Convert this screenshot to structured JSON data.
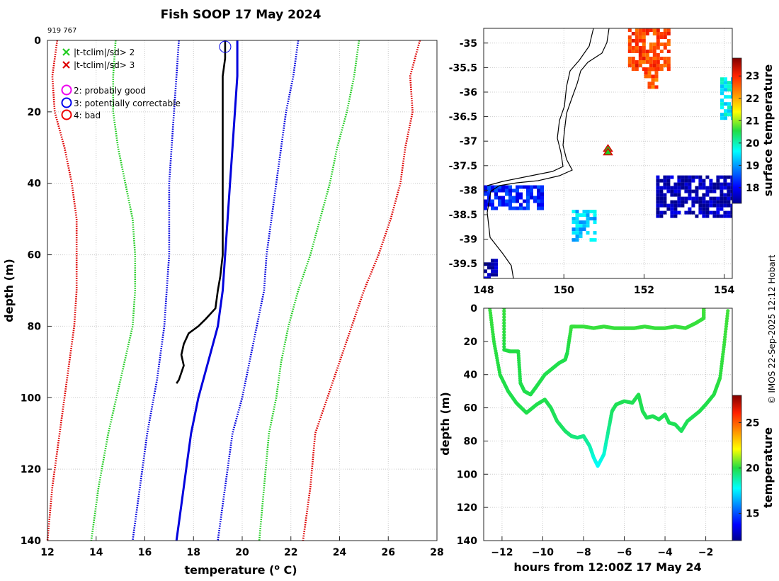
{
  "figure": {
    "title": "Fish SOOP 17 May 2024",
    "id_label": "919 767",
    "credit": "© IMOS 22-Sep-2025 12:12 Hobart",
    "colors": {
      "observed": "#000000",
      "climatology": "#0000dd",
      "sd2": "#22cc22",
      "sd3": "#dd0000",
      "flag2": "#ee00ee",
      "flag3": "#0000ee",
      "flag4": "#ee0000"
    }
  },
  "chart_data": [
    {
      "id": "profile",
      "type": "line",
      "xlabel": "temperature (o C)",
      "xlabel_main": "temperature (",
      "xlabel_sup": "o",
      "xlabel_tail": " C)",
      "ylabel": "depth (m)",
      "xlim": [
        12,
        28
      ],
      "ylim": [
        0,
        140
      ],
      "y_reversed": true,
      "xticks": [
        12,
        14,
        16,
        18,
        20,
        22,
        24,
        26,
        28
      ],
      "yticks": [
        0,
        20,
        40,
        60,
        80,
        100,
        120,
        140
      ],
      "legend": [
        {
          "marker": "x",
          "color": "#22cc22",
          "label": "|t-tclim|/sd> 2"
        },
        {
          "marker": "x",
          "color": "#dd0000",
          "label": "|t-tclim|/sd> 3"
        },
        {
          "marker": "o",
          "color": "#ee00ee",
          "label": "2: probably good"
        },
        {
          "marker": "o",
          "color": "#0000ee",
          "label": "3: potentially correctable"
        },
        {
          "marker": "o",
          "color": "#ee0000",
          "label": "4: bad"
        }
      ],
      "flag_marker": {
        "label": "3: potentially correctable",
        "temperature": 19.3,
        "depth": 1
      },
      "series": [
        {
          "name": "climatology - 3sd",
          "style": "dotted",
          "color": "#dd0000",
          "t": [
            12.4,
            12.2,
            12.3,
            12.7,
            13.0,
            13.2,
            13.2,
            13.2,
            13.1,
            12.8,
            12.5,
            12.2,
            12.0
          ],
          "d": [
            0,
            10,
            20,
            30,
            40,
            50,
            60,
            70,
            80,
            95,
            110,
            125,
            140
          ]
        },
        {
          "name": "climatology - 2sd",
          "style": "dotted",
          "color": "#22cc22",
          "t": [
            14.8,
            14.7,
            14.7,
            14.9,
            15.2,
            15.5,
            15.6,
            15.6,
            15.5,
            15.0,
            14.5,
            14.1,
            13.8
          ],
          "d": [
            0,
            10,
            20,
            30,
            40,
            50,
            60,
            70,
            80,
            95,
            110,
            125,
            140
          ]
        },
        {
          "name": "climatology - 1sd",
          "style": "dotted",
          "color": "#0000dd",
          "t": [
            17.4,
            17.3,
            17.2,
            17.1,
            17.0,
            17.0,
            17.0,
            16.9,
            16.8,
            16.5,
            16.1,
            15.8,
            15.5
          ],
          "d": [
            0,
            10,
            20,
            30,
            40,
            50,
            60,
            70,
            80,
            95,
            110,
            125,
            140
          ]
        },
        {
          "name": "climatology mean",
          "style": "solid",
          "color": "#0000dd",
          "t": [
            19.8,
            19.8,
            19.7,
            19.6,
            19.5,
            19.4,
            19.3,
            19.2,
            19.0,
            18.6,
            18.2,
            17.9,
            17.7,
            17.5,
            17.3
          ],
          "d": [
            0,
            10,
            20,
            30,
            40,
            50,
            60,
            70,
            80,
            90,
            100,
            110,
            120,
            130,
            140
          ]
        },
        {
          "name": "climatology + 1sd",
          "style": "dotted",
          "color": "#0000dd",
          "t": [
            22.3,
            22.1,
            21.8,
            21.6,
            21.4,
            21.2,
            21.0,
            20.9,
            20.6,
            20.3,
            20.0,
            19.6,
            19.3,
            19.0
          ],
          "d": [
            0,
            10,
            20,
            30,
            40,
            50,
            60,
            70,
            80,
            90,
            100,
            110,
            125,
            140
          ]
        },
        {
          "name": "climatology + 2sd",
          "style": "dotted",
          "color": "#22cc22",
          "t": [
            24.8,
            24.6,
            24.3,
            23.9,
            23.6,
            23.2,
            22.8,
            22.3,
            21.9,
            21.6,
            21.4,
            21.1,
            20.9,
            20.7
          ],
          "d": [
            0,
            10,
            20,
            30,
            40,
            50,
            60,
            70,
            80,
            90,
            100,
            110,
            125,
            140
          ]
        },
        {
          "name": "climatology + 3sd",
          "style": "dotted",
          "color": "#dd0000",
          "t": [
            27.3,
            26.9,
            27.0,
            26.7,
            26.5,
            26.1,
            25.6,
            25.0,
            24.5,
            24.0,
            23.5,
            23.0,
            22.8,
            22.5
          ],
          "d": [
            0,
            10,
            20,
            30,
            40,
            50,
            60,
            70,
            80,
            90,
            100,
            110,
            125,
            140
          ]
        },
        {
          "name": "observed profile",
          "style": "solid",
          "color": "#000000",
          "t": [
            19.3,
            19.3,
            19.2,
            19.2,
            19.2,
            19.2,
            19.2,
            19.2,
            19.1,
            19.0,
            18.9,
            18.5,
            18.2,
            17.8,
            17.6,
            17.5,
            17.6,
            17.5,
            17.4,
            17.3
          ],
          "d": [
            0,
            5,
            10,
            20,
            30,
            40,
            50,
            60,
            66,
            70,
            75,
            78,
            80,
            82,
            85,
            88,
            91,
            93,
            95,
            96
          ]
        }
      ]
    },
    {
      "id": "map",
      "type": "heatmap",
      "xlim": [
        148,
        154.2
      ],
      "ylim": [
        -39.8,
        -34.7
      ],
      "xticks": [
        148,
        150,
        152,
        154
      ],
      "yticks": [
        -35,
        -35.5,
        -36,
        -36.5,
        -37,
        -37.5,
        -38,
        -38.5,
        -39,
        -39.5
      ],
      "colorbar_label": "surface temperature",
      "colorbar_range": [
        17.3,
        23.8
      ],
      "colorbar_ticks": [
        18,
        19,
        20,
        21,
        22,
        23
      ],
      "station": {
        "lon": 151.1,
        "lat": -37.25,
        "marker": "triangle"
      },
      "patches": [
        {
          "lon": [
            151.6,
            152.6
          ],
          "lat": [
            -34.7,
            -35.5
          ],
          "value": 22.8
        },
        {
          "lon": [
            152.0,
            152.3
          ],
          "lat": [
            -35.5,
            -35.9
          ],
          "value": 22.6
        },
        {
          "lon": [
            153.9,
            154.2
          ],
          "lat": [
            -35.7,
            -36.5
          ],
          "value": 19.6
        },
        {
          "lon": [
            152.3,
            154.2
          ],
          "lat": [
            -37.7,
            -38.5
          ],
          "value": 17.5
        },
        {
          "lon": [
            148.0,
            149.5
          ],
          "lat": [
            -37.9,
            -38.4
          ],
          "value": 18.2
        },
        {
          "lon": [
            150.2,
            150.8
          ],
          "lat": [
            -38.4,
            -39.0
          ],
          "value": 19.3
        },
        {
          "lon": [
            148.0,
            148.3
          ],
          "lat": [
            -39.4,
            -39.8
          ],
          "value": 17.5
        }
      ]
    },
    {
      "id": "timeseries",
      "type": "scatter",
      "xlabel": "hours from 12:00Z 17 May 24",
      "ylabel": "depth (m)",
      "xlim": [
        -12.9,
        -0.7
      ],
      "ylim": [
        0,
        140
      ],
      "y_reversed": true,
      "xticks": [
        -12,
        -10,
        -8,
        -6,
        -4,
        -2
      ],
      "yticks": [
        0,
        20,
        40,
        60,
        80,
        100,
        120,
        140
      ],
      "colorbar_label": "temperature",
      "colorbar_range": [
        12,
        28
      ],
      "colorbar_ticks": [
        15,
        20,
        25
      ],
      "segments": [
        {
          "hours": [
            -12.6,
            -12.4,
            -12.1,
            -11.7,
            -11.3,
            -10.8,
            -10.3,
            -9.9,
            -9.6,
            -9.3,
            -8.9,
            -8.6,
            -8.3,
            -8.0,
            -7.7,
            -7.5,
            -7.3,
            -7.0,
            -6.8,
            -6.6,
            -6.4,
            -6.2,
            -6.0,
            -5.6,
            -5.3,
            -5.1,
            -4.9,
            -4.6,
            -4.3,
            -4.0,
            -3.8,
            -3.5,
            -3.2,
            -2.9,
            -2.6,
            -2.3,
            -2.0,
            -1.6,
            -1.3,
            -1.1,
            -0.9
          ],
          "depth": [
            0,
            20,
            40,
            50,
            57,
            63,
            58,
            55,
            60,
            68,
            74,
            77,
            78,
            77,
            83,
            90,
            95,
            88,
            75,
            62,
            58,
            57,
            56,
            57,
            52,
            62,
            66,
            65,
            67,
            64,
            69,
            70,
            74,
            68,
            65,
            62,
            58,
            52,
            42,
            22,
            0
          ],
          "temperature": [
            20.2,
            20.1,
            20.0,
            19.9,
            19.9,
            19.9,
            19.9,
            19.9,
            19.8,
            19.7,
            19.6,
            19.4,
            19.3,
            19.2,
            18.8,
            18.2,
            17.8,
            18.2,
            19.0,
            19.6,
            19.8,
            19.8,
            19.8,
            19.8,
            19.9,
            19.8,
            19.8,
            19.8,
            19.8,
            19.8,
            19.8,
            19.8,
            19.7,
            19.8,
            19.8,
            19.9,
            19.9,
            20.0,
            20.1,
            20.2,
            20.3
          ]
        },
        {
          "hours": [
            -11.9,
            -11.9,
            -11.6,
            -11.2,
            -11.1,
            -10.9,
            -10.6,
            -10.3,
            -9.9,
            -9.5,
            -9.2,
            -8.9,
            -8.8,
            -8.6,
            -8.4,
            -8.0,
            -7.5,
            -7.0,
            -6.5,
            -6.0,
            -5.5,
            -5.0,
            -4.5,
            -4.0,
            -3.5,
            -3.0,
            -2.5,
            -2.1,
            -2.1
          ],
          "depth": [
            0,
            25,
            26,
            26,
            45,
            50,
            52,
            47,
            40,
            36,
            33,
            31,
            27,
            11,
            11,
            11,
            12,
            11,
            12,
            12,
            12,
            11,
            12,
            12,
            11,
            12,
            9,
            6,
            0
          ],
          "temperature": [
            20.2,
            20.0,
            20.0,
            20.0,
            19.9,
            19.9,
            19.9,
            19.9,
            19.9,
            19.9,
            19.9,
            19.9,
            19.9,
            20.2,
            20.2,
            20.2,
            20.2,
            20.2,
            20.2,
            20.2,
            20.2,
            20.2,
            20.2,
            20.2,
            20.2,
            20.2,
            20.2,
            20.2,
            20.3
          ]
        }
      ]
    }
  ]
}
